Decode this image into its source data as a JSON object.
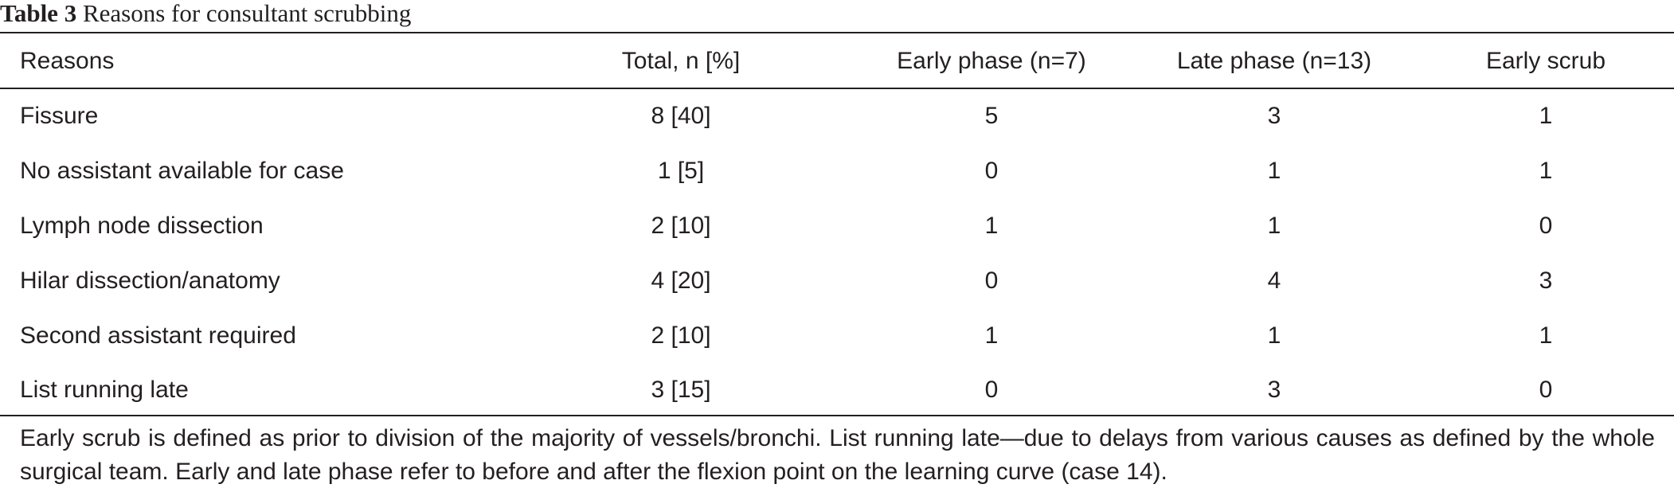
{
  "caption": {
    "label": "Table 3",
    "title": "Reasons for consultant scrubbing"
  },
  "table": {
    "headers": [
      "Reasons",
      "Total, n [%]",
      "Early phase (n=7)",
      "Late phase (n=13)",
      "Early scrub"
    ],
    "rows": [
      [
        "Fissure",
        "8 [40]",
        "5",
        "3",
        "1"
      ],
      [
        "No assistant available for case",
        "1 [5]",
        "0",
        "1",
        "1"
      ],
      [
        "Lymph node dissection",
        "2 [10]",
        "1",
        "1",
        "0"
      ],
      [
        "Hilar dissection/anatomy",
        "4 [20]",
        "0",
        "4",
        "3"
      ],
      [
        "Second assistant required",
        "2 [10]",
        "1",
        "1",
        "1"
      ],
      [
        "List running late",
        "3 [15]",
        "0",
        "3",
        "0"
      ]
    ]
  },
  "footnote": "Early scrub is defined as prior to division of the majority of vessels/bronchi. List running late—due to delays from various causes as defined by the whole surgical team. Early and late phase refer to before and after the flexion point on the learning curve (case 14)."
}
